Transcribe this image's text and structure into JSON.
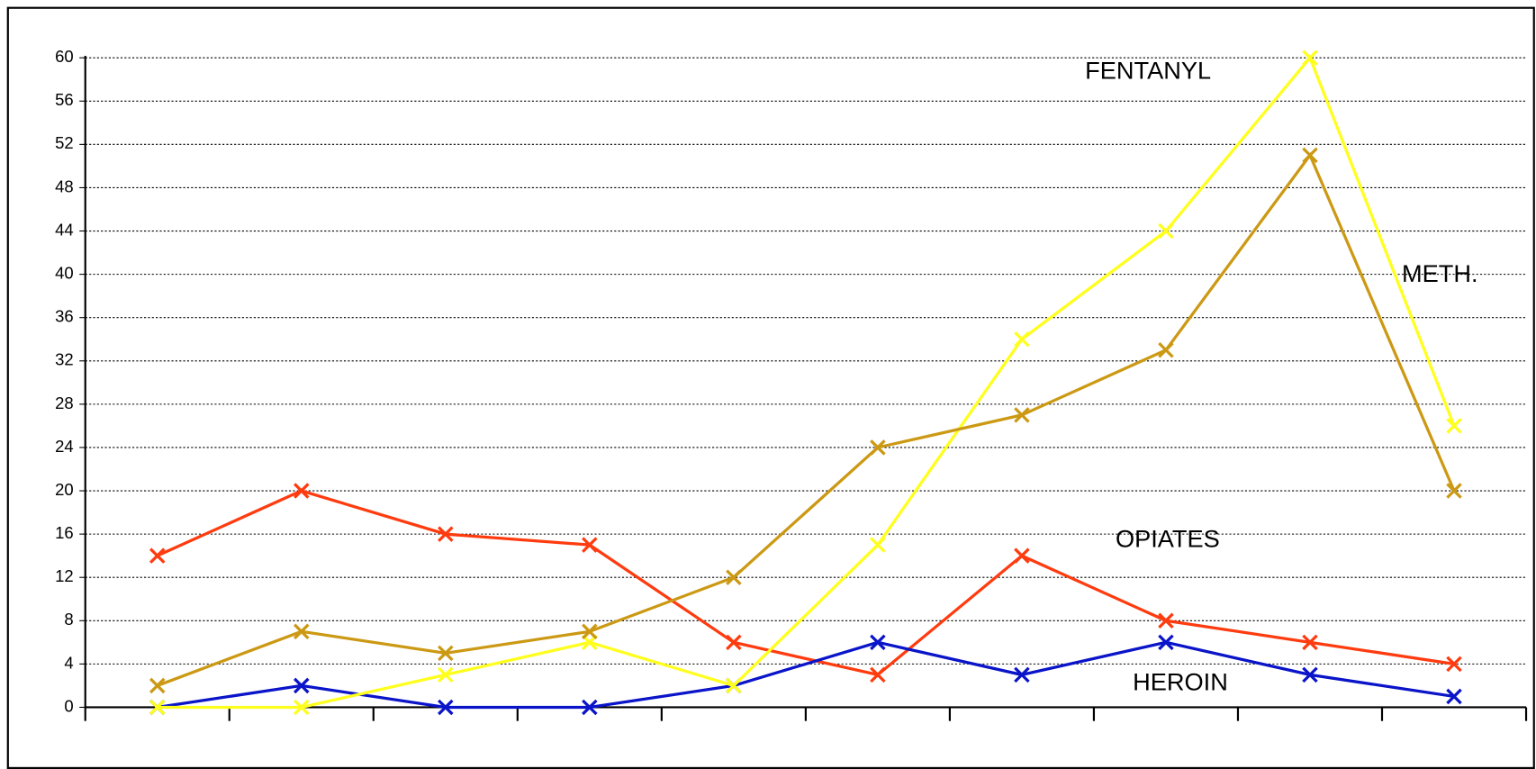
{
  "chart_data": {
    "type": "line",
    "categories": [
      null,
      null,
      null,
      null,
      null,
      null,
      null,
      null,
      null,
      null
    ],
    "series": [
      {
        "name": "OPIATES",
        "color": "#ff3b0f",
        "values": [
          14,
          20,
          16,
          15,
          6,
          3,
          14,
          8,
          6,
          4
        ]
      },
      {
        "name": "HEROIN",
        "color": "#0a14c8",
        "values": [
          0,
          2,
          0,
          0,
          2,
          6,
          3,
          6,
          3,
          1
        ]
      },
      {
        "name": "FENTANYL",
        "color": "#ffff1e",
        "values": [
          0,
          0,
          3,
          6,
          2,
          15,
          34,
          44,
          60,
          26
        ]
      },
      {
        "name": "METH.",
        "color": "#cc9914",
        "values": [
          2,
          7,
          5,
          7,
          12,
          24,
          27,
          33,
          51,
          20
        ]
      }
    ],
    "ylim": [
      0,
      60
    ],
    "yticks": [
      0,
      4,
      8,
      12,
      16,
      20,
      24,
      28,
      32,
      36,
      40,
      44,
      48,
      52,
      56,
      60
    ],
    "grid": true
  }
}
